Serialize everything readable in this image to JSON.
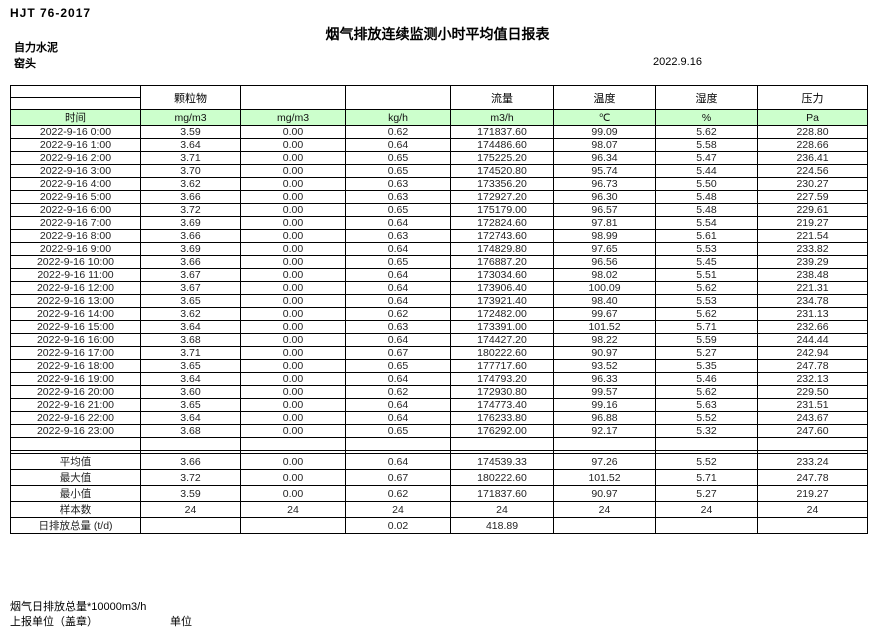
{
  "page": {
    "doc_code": "HJT  76-2017",
    "title": "烟气排放连续监测小时平均值日报表",
    "company": "自力水泥",
    "location": "窑头",
    "date": "2022.9.16"
  },
  "colors": {
    "units_row_green": "#ccffcc",
    "border": "#000000"
  },
  "table": {
    "group_headers": {
      "pm": "颗粒物",
      "flow": "流量",
      "temperature": "温度",
      "humidity": "湿度",
      "pressure": "压力"
    },
    "units_row": [
      "时间",
      "mg/m3",
      "mg/m3",
      "kg/h",
      "m3/h",
      "℃",
      "%",
      "Pa"
    ],
    "rows": [
      {
        "time": "2022-9-16 0:00",
        "values": [
          "3.59",
          "0.00",
          "0.62",
          "171837.60",
          "99.09",
          "5.62",
          "228.80"
        ]
      },
      {
        "time": "2022-9-16 1:00",
        "values": [
          "3.64",
          "0.00",
          "0.64",
          "174486.60",
          "98.07",
          "5.58",
          "228.66"
        ]
      },
      {
        "time": "2022-9-16 2:00",
        "values": [
          "3.71",
          "0.00",
          "0.65",
          "175225.20",
          "96.34",
          "5.47",
          "236.41"
        ]
      },
      {
        "time": "2022-9-16 3:00",
        "values": [
          "3.70",
          "0.00",
          "0.65",
          "174520.80",
          "95.74",
          "5.44",
          "224.56"
        ]
      },
      {
        "time": "2022-9-16 4:00",
        "values": [
          "3.62",
          "0.00",
          "0.63",
          "173356.20",
          "96.73",
          "5.50",
          "230.27"
        ]
      },
      {
        "time": "2022-9-16 5:00",
        "values": [
          "3.66",
          "0.00",
          "0.63",
          "172927.20",
          "96.30",
          "5.48",
          "227.59"
        ]
      },
      {
        "time": "2022-9-16 6:00",
        "values": [
          "3.72",
          "0.00",
          "0.65",
          "175179.00",
          "96.57",
          "5.48",
          "229.61"
        ]
      },
      {
        "time": "2022-9-16 7:00",
        "values": [
          "3.69",
          "0.00",
          "0.64",
          "172824.60",
          "97.81",
          "5.54",
          "219.27"
        ]
      },
      {
        "time": "2022-9-16 8:00",
        "values": [
          "3.66",
          "0.00",
          "0.63",
          "172743.60",
          "98.99",
          "5.61",
          "221.54"
        ]
      },
      {
        "time": "2022-9-16 9:00",
        "values": [
          "3.69",
          "0.00",
          "0.64",
          "174829.80",
          "97.65",
          "5.53",
          "233.82"
        ]
      },
      {
        "time": "2022-9-16 10:00",
        "values": [
          "3.66",
          "0.00",
          "0.65",
          "176887.20",
          "96.56",
          "5.45",
          "239.29"
        ]
      },
      {
        "time": "2022-9-16 11:00",
        "values": [
          "3.67",
          "0.00",
          "0.64",
          "173034.60",
          "98.02",
          "5.51",
          "238.48"
        ]
      },
      {
        "time": "2022-9-16 12:00",
        "values": [
          "3.67",
          "0.00",
          "0.64",
          "173906.40",
          "100.09",
          "5.62",
          "221.31"
        ]
      },
      {
        "time": "2022-9-16 13:00",
        "values": [
          "3.65",
          "0.00",
          "0.64",
          "173921.40",
          "98.40",
          "5.53",
          "234.78"
        ]
      },
      {
        "time": "2022-9-16 14:00",
        "values": [
          "3.62",
          "0.00",
          "0.62",
          "172482.00",
          "99.67",
          "5.62",
          "231.13"
        ]
      },
      {
        "time": "2022-9-16 15:00",
        "values": [
          "3.64",
          "0.00",
          "0.63",
          "173391.00",
          "101.52",
          "5.71",
          "232.66"
        ]
      },
      {
        "time": "2022-9-16 16:00",
        "values": [
          "3.68",
          "0.00",
          "0.64",
          "174427.20",
          "98.22",
          "5.59",
          "244.44"
        ]
      },
      {
        "time": "2022-9-16 17:00",
        "values": [
          "3.71",
          "0.00",
          "0.67",
          "180222.60",
          "90.97",
          "5.27",
          "242.94"
        ]
      },
      {
        "time": "2022-9-16 18:00",
        "values": [
          "3.65",
          "0.00",
          "0.65",
          "177717.60",
          "93.52",
          "5.35",
          "247.78"
        ]
      },
      {
        "time": "2022-9-16 19:00",
        "values": [
          "3.64",
          "0.00",
          "0.64",
          "174793.20",
          "96.33",
          "5.46",
          "232.13"
        ]
      },
      {
        "time": "2022-9-16 20:00",
        "values": [
          "3.60",
          "0.00",
          "0.62",
          "172930.80",
          "99.57",
          "5.62",
          "229.50"
        ]
      },
      {
        "time": "2022-9-16 21:00",
        "values": [
          "3.65",
          "0.00",
          "0.64",
          "174773.40",
          "99.16",
          "5.63",
          "231.51"
        ]
      },
      {
        "time": "2022-9-16 22:00",
        "values": [
          "3.64",
          "0.00",
          "0.64",
          "176233.80",
          "96.88",
          "5.52",
          "243.67"
        ]
      },
      {
        "time": "2022-9-16 23:00",
        "values": [
          "3.68",
          "0.00",
          "0.65",
          "176292.00",
          "92.17",
          "5.32",
          "247.60"
        ]
      }
    ],
    "summary_rows": [
      {
        "label": "平均值",
        "values": [
          "3.66",
          "0.00",
          "0.64",
          "174539.33",
          "97.26",
          "5.52",
          "233.24"
        ]
      },
      {
        "label": "最大值",
        "values": [
          "3.72",
          "0.00",
          "0.67",
          "180222.60",
          "101.52",
          "5.71",
          "247.78"
        ]
      },
      {
        "label": "最小值",
        "values": [
          "3.59",
          "0.00",
          "0.62",
          "171837.60",
          "90.97",
          "5.27",
          "219.27"
        ]
      },
      {
        "label": "样本数",
        "values": [
          "24",
          "24",
          "24",
          "24",
          "24",
          "24",
          "24"
        ]
      },
      {
        "label": "日排放总量 (t/d)",
        "values": [
          "",
          "",
          "0.02",
          "418.89",
          "",
          "",
          ""
        ]
      }
    ]
  },
  "footer": {
    "line1": "烟气日排放总量*10000m3/h",
    "line2": "上报单位（盖章）",
    "unit_label": "单位"
  }
}
